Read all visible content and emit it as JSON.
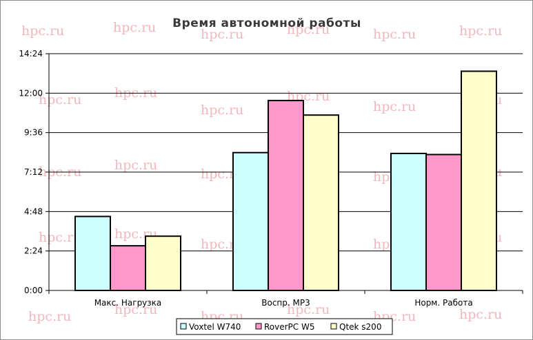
{
  "watermark": "hpc.ru",
  "chart_data": {
    "type": "bar",
    "title": "Время автономной работы",
    "categories": [
      "Макс. Нагрузка",
      "Воспр. MP3",
      "Норм. Работа"
    ],
    "y_ticks": [
      "0:00",
      "2:24",
      "4:48",
      "7:12",
      "9:36",
      "12:00",
      "14:24"
    ],
    "ylim_minutes": [
      0,
      864
    ],
    "y_unit": "h:mm",
    "series": [
      {
        "name": "Voxtel W740",
        "color": "#ccffff",
        "values_minutes": [
          270,
          503,
          500
        ]
      },
      {
        "name": "RoverPC W5",
        "color": "#ff99cc",
        "values_minutes": [
          163,
          693,
          496
        ]
      },
      {
        "name": "Qtek s200",
        "color": "#ffffcc",
        "values_minutes": [
          198,
          640,
          800
        ]
      }
    ],
    "grid": "horizontal major lines",
    "legend": "bottom"
  }
}
